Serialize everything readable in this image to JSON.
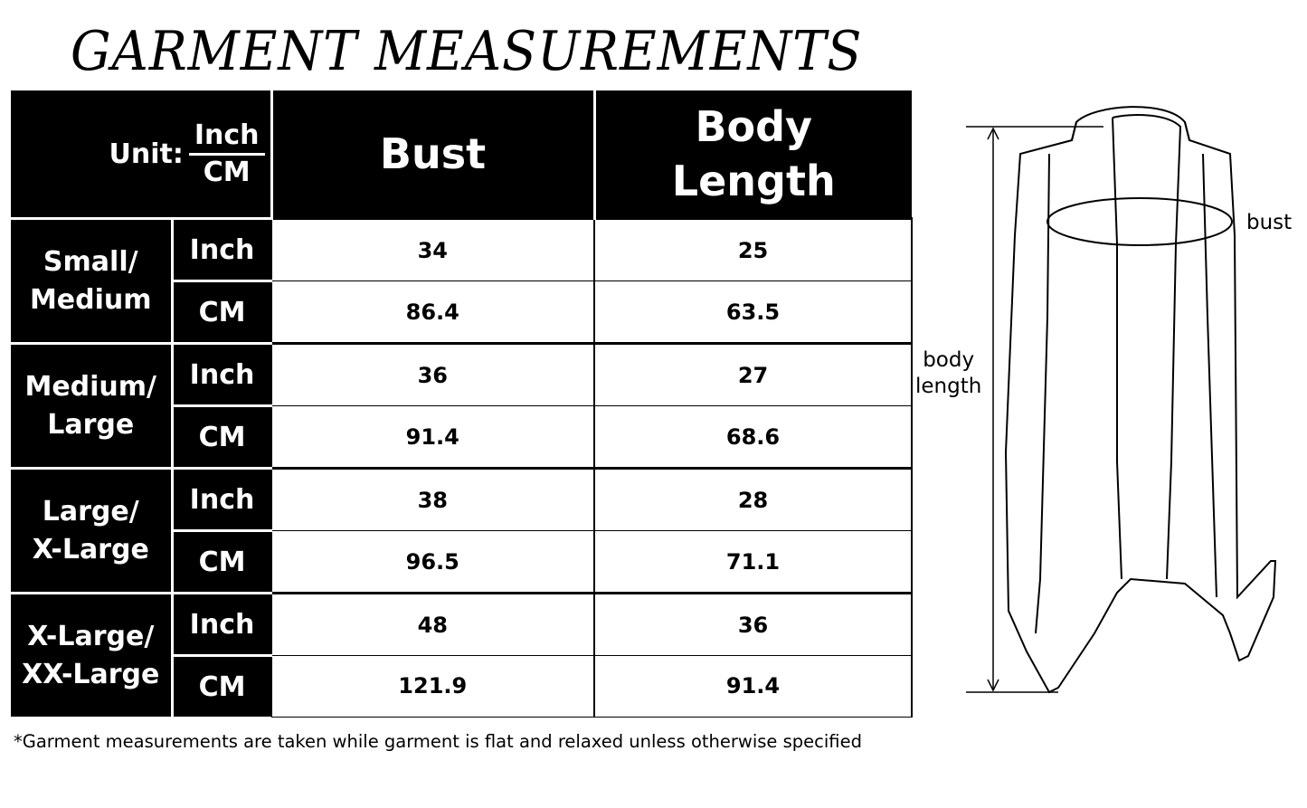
{
  "title": "GARMENT MEASUREMENTS",
  "table": {
    "unit_label": "Unit:",
    "unit_top": "Inch",
    "unit_bottom": "CM",
    "columns": [
      "Bust",
      "Body Length"
    ],
    "column_lines": [
      [
        "Bust"
      ],
      [
        "Body",
        "Length"
      ]
    ],
    "sizes": [
      {
        "name_lines": [
          "Small/",
          "Medium"
        ],
        "rows": [
          {
            "unit": "Inch",
            "bust": "34",
            "length": "25"
          },
          {
            "unit": "CM",
            "bust": "86.4",
            "length": "63.5"
          }
        ]
      },
      {
        "name_lines": [
          "Medium/",
          "Large"
        ],
        "rows": [
          {
            "unit": "Inch",
            "bust": "36",
            "length": "27"
          },
          {
            "unit": "CM",
            "bust": "91.4",
            "length": "68.6"
          }
        ]
      },
      {
        "name_lines": [
          "Large/",
          "X-Large"
        ],
        "rows": [
          {
            "unit": "Inch",
            "bust": "38",
            "length": "28"
          },
          {
            "unit": "CM",
            "bust": "96.5",
            "length": "71.1"
          }
        ]
      },
      {
        "name_lines": [
          "X-Large/",
          "XX-Large"
        ],
        "rows": [
          {
            "unit": "Inch",
            "bust": "48",
            "length": "36"
          },
          {
            "unit": "CM",
            "bust": "121.9",
            "length": "91.4"
          }
        ]
      }
    ]
  },
  "diagram": {
    "bust_label": "bust",
    "length_label_lines": [
      "body",
      "length"
    ]
  },
  "footnote": "*Garment measurements are taken while garment is flat and relaxed unless otherwise specified"
}
